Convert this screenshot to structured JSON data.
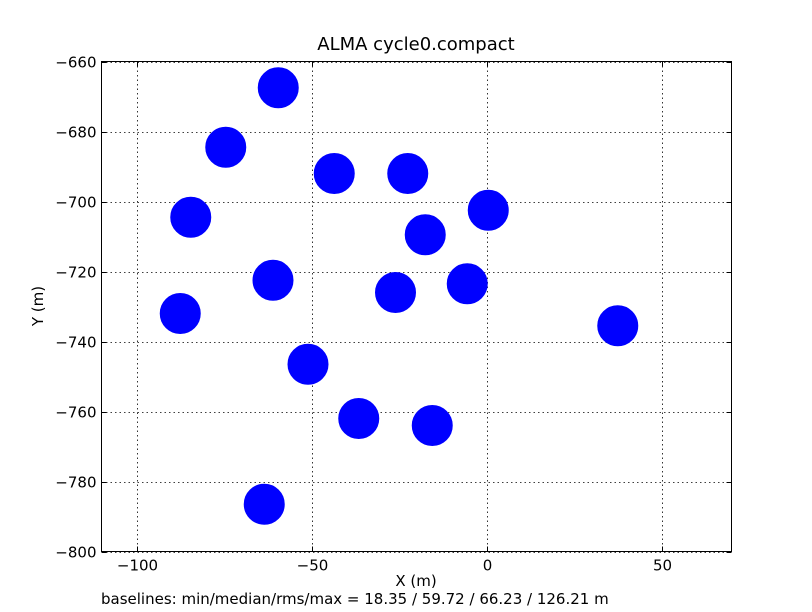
{
  "chart_data": {
    "type": "scatter",
    "title": "ALMA cycle0.compact",
    "xlabel": "X (m)",
    "ylabel": "Y (m)",
    "xlim": [
      -110,
      70
    ],
    "ylim": [
      -800,
      -660
    ],
    "xticks": [
      -100,
      -50,
      0,
      50
    ],
    "yticks": [
      -800,
      -780,
      -760,
      -740,
      -720,
      -700,
      -680,
      -660
    ],
    "xtick_labels": [
      "−100",
      "−50",
      "0",
      "50"
    ],
    "ytick_labels": [
      "−800",
      "−780",
      "−760",
      "−740",
      "−720",
      "−700",
      "−680",
      "−660"
    ],
    "grid": true,
    "marker_color": "#0000ff",
    "points": [
      {
        "x": -59.5,
        "y": -667.5
      },
      {
        "x": -74.5,
        "y": -684.5
      },
      {
        "x": -43.5,
        "y": -692.0
      },
      {
        "x": -22.5,
        "y": -692.0
      },
      {
        "x": -84.5,
        "y": -704.5
      },
      {
        "x": 0.5,
        "y": -702.5
      },
      {
        "x": -17.5,
        "y": -709.5
      },
      {
        "x": -61.0,
        "y": -722.5
      },
      {
        "x": -5.5,
        "y": -723.5
      },
      {
        "x": -26.0,
        "y": -726.0
      },
      {
        "x": -87.5,
        "y": -732.0
      },
      {
        "x": 37.5,
        "y": -735.5
      },
      {
        "x": -51.0,
        "y": -746.5
      },
      {
        "x": -36.5,
        "y": -762.0
      },
      {
        "x": -15.5,
        "y": -764.0
      },
      {
        "x": -63.5,
        "y": -786.5
      }
    ],
    "footer": "baselines: min/median/rms/max = 18.35 / 59.72 / 66.23 / 126.21 m"
  }
}
